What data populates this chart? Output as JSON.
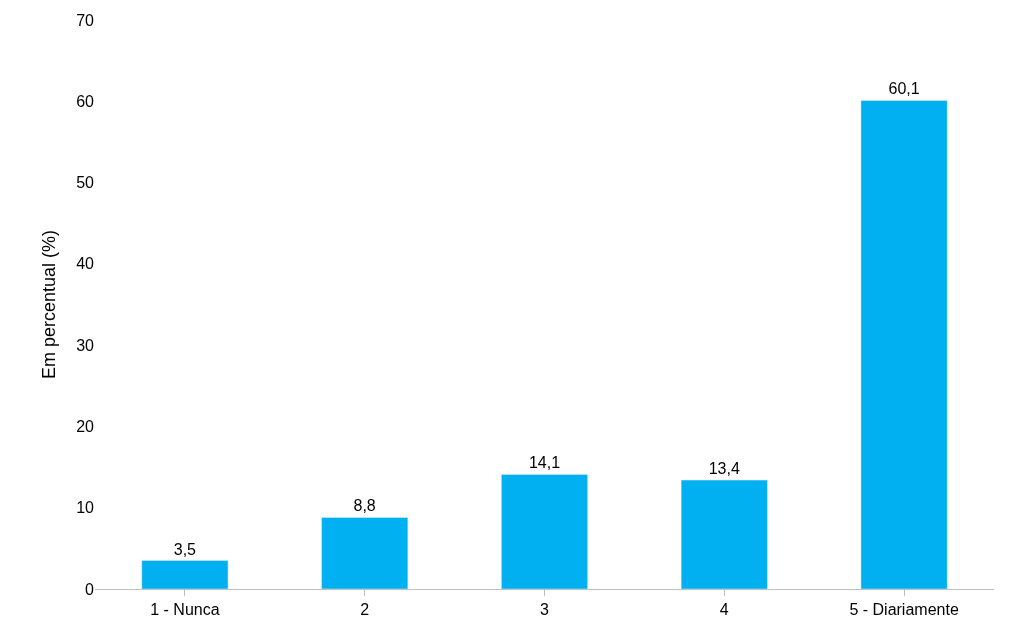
{
  "chart_data": {
    "type": "bar",
    "ylabel": "Em percentual (%)",
    "categories": [
      "1 - Nunca",
      "2",
      "3",
      "4",
      "5 - Diariamente"
    ],
    "values": [
      3.5,
      8.8,
      14.1,
      13.4,
      60.1
    ],
    "value_labels": [
      "3,5",
      "8,8",
      "14,1",
      "13,4",
      "60,1"
    ],
    "color": "#00b0f0",
    "ylim": [
      0,
      70
    ],
    "yticks": [
      0,
      10,
      20,
      30,
      40,
      50,
      60,
      70
    ]
  }
}
